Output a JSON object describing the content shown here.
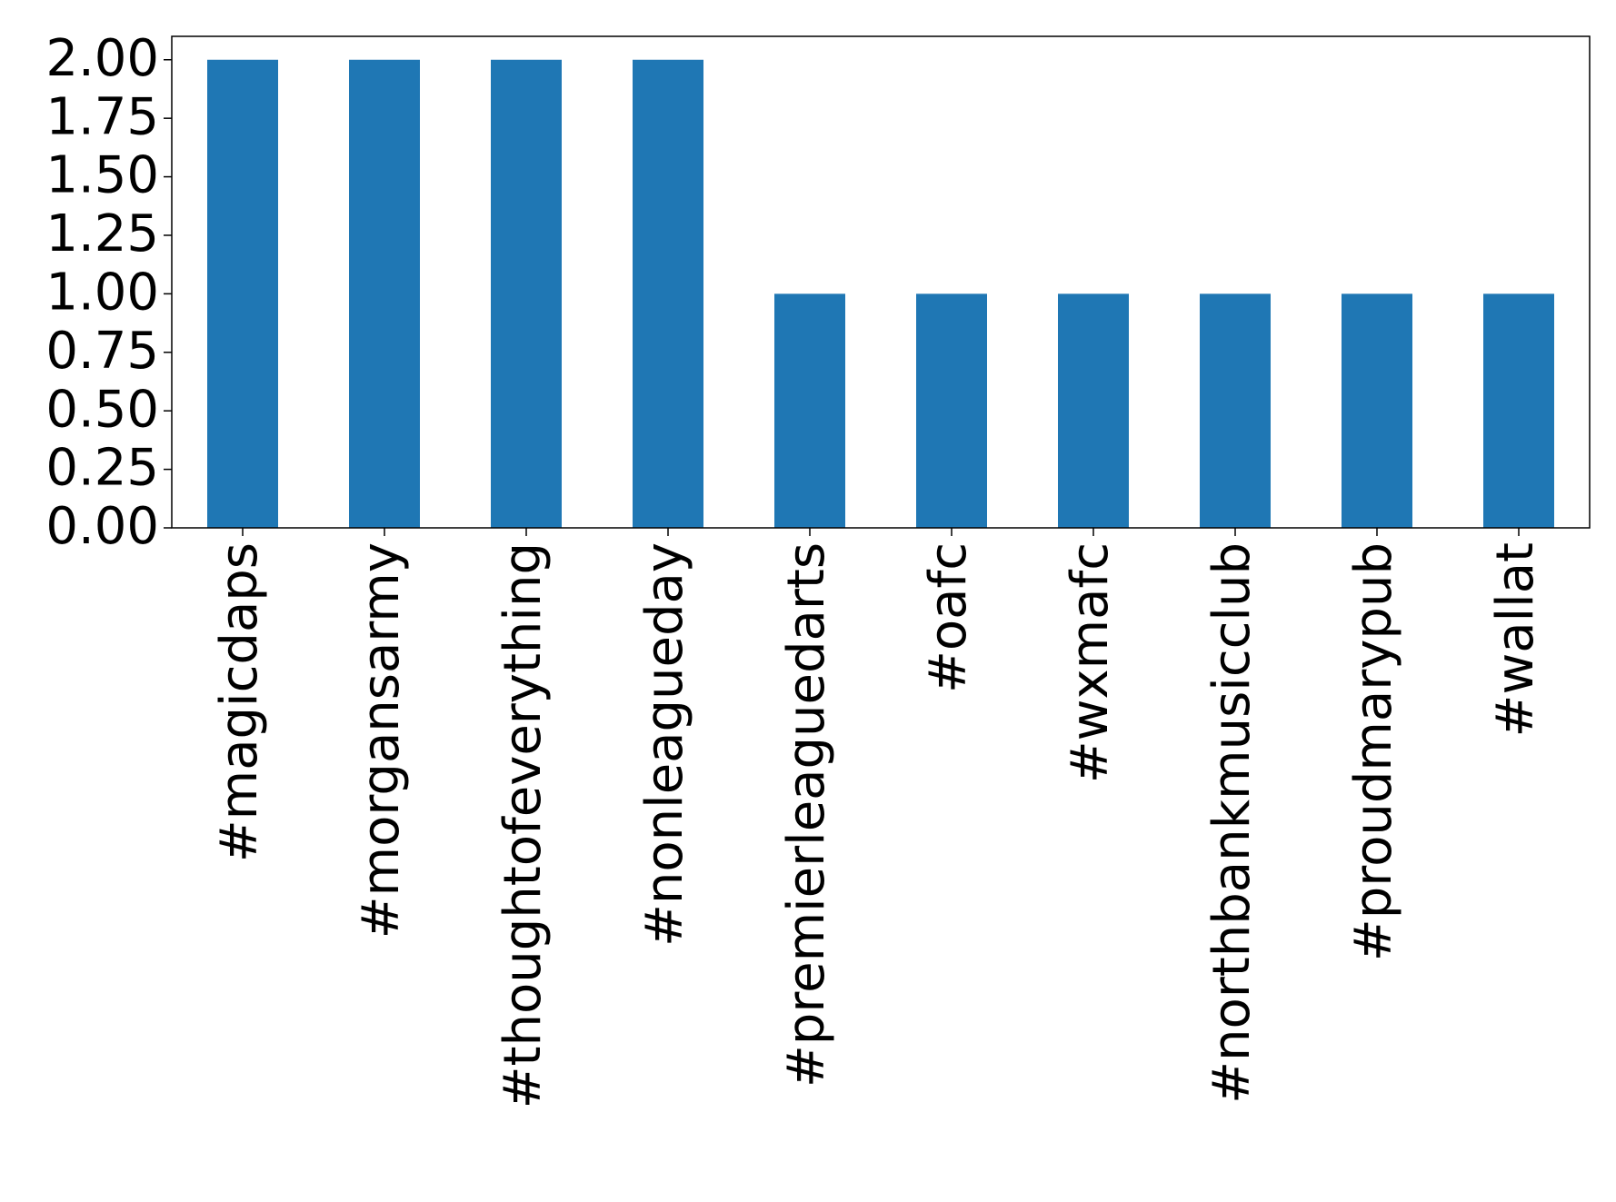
{
  "chart_data": {
    "type": "bar",
    "categories": [
      "#magicdaps",
      "#morgansarmy",
      "#thoughtofeverything",
      "#nonleagueday",
      "#premierleaguedarts",
      "#oafc",
      "#wxmafc",
      "#northbankmusicclub",
      "#proudmarypub",
      "#wallat"
    ],
    "values": [
      2,
      2,
      2,
      2,
      1,
      1,
      1,
      1,
      1,
      1
    ],
    "color": "#1f77b4",
    "ylim": [
      0,
      2.1
    ],
    "yticks": [
      {
        "value": 0,
        "label": "0.00"
      },
      {
        "value": 0.25,
        "label": "0.25"
      },
      {
        "value": 0.5,
        "label": "0.50"
      },
      {
        "value": 0.75,
        "label": "0.75"
      },
      {
        "value": 1,
        "label": "1.00"
      },
      {
        "value": 1.25,
        "label": "1.25"
      },
      {
        "value": 1.5,
        "label": "1.50"
      },
      {
        "value": 1.75,
        "label": "1.75"
      },
      {
        "value": 2,
        "label": "2.00"
      }
    ],
    "grid": false
  }
}
